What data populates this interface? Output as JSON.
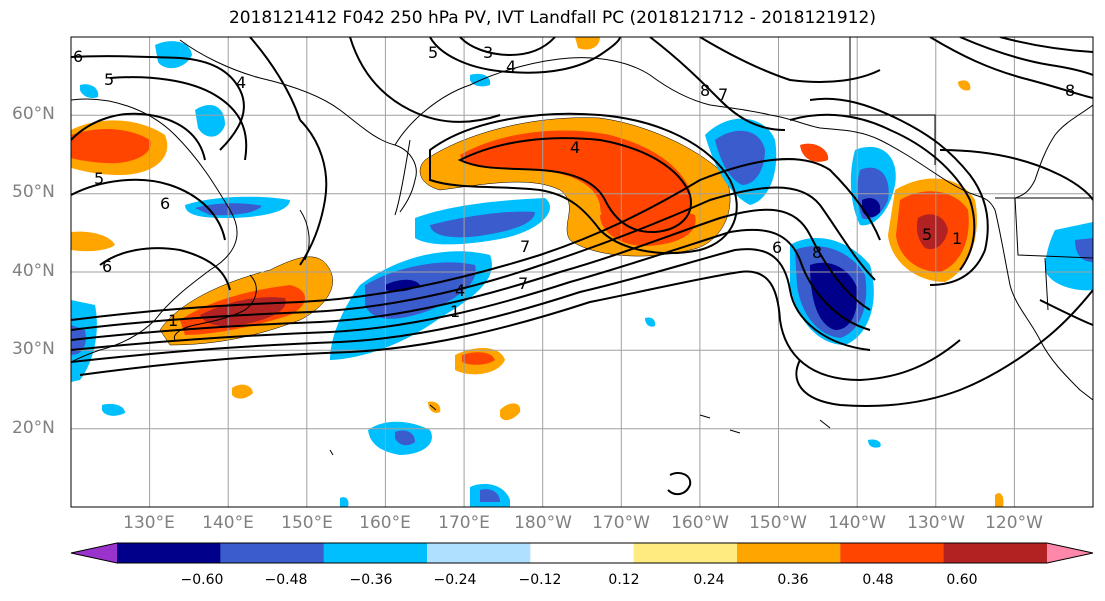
{
  "title": "2018121412 F042 250 hPa PV, IVT Landfall PC (2018121712 - 2018121912)",
  "map": {
    "extent": {
      "lon_min": 120,
      "lon_max": 250,
      "lat_min": 10,
      "lat_max": 70
    },
    "lat_labels": [
      "60°N",
      "50°N",
      "40°N",
      "30°N",
      "20°N"
    ],
    "lon_labels": [
      "130°E",
      "140°E",
      "150°E",
      "160°E",
      "170°E",
      "180°W",
      "170°W",
      "160°W",
      "150°W",
      "140°W",
      "130°W",
      "120°W"
    ],
    "contour_labels": [
      "6",
      "5",
      "3",
      "4",
      "5",
      "8",
      "7",
      "4",
      "4",
      "5",
      "6",
      "6",
      "7",
      "7",
      "1",
      "4",
      "1",
      "6",
      "8",
      "5",
      "1",
      "8"
    ]
  },
  "colorbar": {
    "ticks": [
      "−0.60",
      "−0.48",
      "−0.36",
      "−0.24",
      "−0.12",
      "0.12",
      "0.24",
      "0.36",
      "0.48",
      "0.60"
    ],
    "colors": [
      "#9933cc",
      "#00008b",
      "#3a5ccc",
      "#00bfff",
      "#b0e0ff",
      "#ffffff",
      "#ffeb80",
      "#ffa500",
      "#ff4500",
      "#b22222",
      "#ff88aa"
    ]
  }
}
